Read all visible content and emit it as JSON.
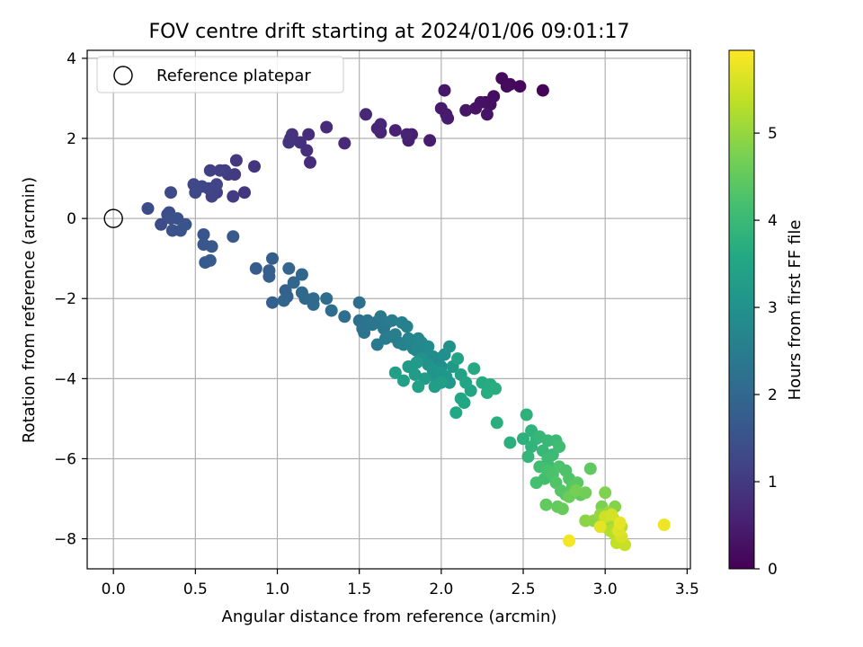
{
  "chart_data": {
    "type": "scatter",
    "title": "FOV centre drift starting at 2024/01/06 09:01:17",
    "xlabel": "Angular distance from reference (arcmin)",
    "ylabel": "Rotation from reference (arcmin)",
    "xlim": [
      -0.16,
      3.52
    ],
    "ylim": [
      -8.75,
      4.2
    ],
    "x_ticks": [
      0.0,
      0.5,
      1.0,
      1.5,
      2.0,
      2.5,
      3.0,
      3.5
    ],
    "x_tick_labels": [
      "0.0",
      "0.5",
      "1.0",
      "1.5",
      "2.0",
      "2.5",
      "3.0",
      "3.5"
    ],
    "y_ticks": [
      4,
      2,
      0,
      -2,
      -4,
      -6,
      -8
    ],
    "y_tick_labels": [
      "4",
      "2",
      "0",
      "−2",
      "−4",
      "−6",
      "−8"
    ],
    "grid": true,
    "legend": {
      "placement": "upper-left",
      "entries": [
        "Reference platepar"
      ]
    },
    "reference_point": {
      "x": 0.0,
      "y": 0.0
    },
    "colorbar": {
      "label": "Hours from first FF file",
      "range": [
        0,
        5.95
      ],
      "ticks": [
        0,
        1,
        2,
        3,
        4,
        5
      ],
      "tick_labels": [
        "0",
        "1",
        "2",
        "3",
        "4",
        "5"
      ],
      "colormap": "viridis"
    },
    "points": [
      [
        2.62,
        3.2,
        0.05
      ],
      [
        2.48,
        3.3,
        0.1
      ],
      [
        2.42,
        3.35,
        0.12
      ],
      [
        2.37,
        3.5,
        0.15
      ],
      [
        2.4,
        3.3,
        0.17
      ],
      [
        2.32,
        3.05,
        0.2
      ],
      [
        2.27,
        2.9,
        0.22
      ],
      [
        2.3,
        2.85,
        0.25
      ],
      [
        2.24,
        2.9,
        0.27
      ],
      [
        2.21,
        2.75,
        0.3
      ],
      [
        2.28,
        2.6,
        0.32
      ],
      [
        2.15,
        2.7,
        0.35
      ],
      [
        2.02,
        3.2,
        0.37
      ],
      [
        2.03,
        2.6,
        0.4
      ],
      [
        2.0,
        2.75,
        0.42
      ],
      [
        2.04,
        2.5,
        0.45
      ],
      [
        1.93,
        1.95,
        0.47
      ],
      [
        1.82,
        2.1,
        0.5
      ],
      [
        1.8,
        1.95,
        0.52
      ],
      [
        1.72,
        2.2,
        0.55
      ],
      [
        1.79,
        2.1,
        0.57
      ],
      [
        1.63,
        2.15,
        0.6
      ],
      [
        1.61,
        2.25,
        0.62
      ],
      [
        1.63,
        2.35,
        0.65
      ],
      [
        1.54,
        2.6,
        0.67
      ],
      [
        1.41,
        1.88,
        0.7
      ],
      [
        1.3,
        2.28,
        0.72
      ],
      [
        1.19,
        2.1,
        0.75
      ],
      [
        1.2,
        1.4,
        0.77
      ],
      [
        1.18,
        1.7,
        0.8
      ],
      [
        1.14,
        1.9,
        0.82
      ],
      [
        1.08,
        2.0,
        0.85
      ],
      [
        1.09,
        2.1,
        0.87
      ],
      [
        1.07,
        1.9,
        0.9
      ],
      [
        0.86,
        1.3,
        0.92
      ],
      [
        0.8,
        0.65,
        0.95
      ],
      [
        0.75,
        1.45,
        0.97
      ],
      [
        0.74,
        1.1,
        1.0
      ],
      [
        0.7,
        1.1,
        1.02
      ],
      [
        0.73,
        0.55,
        1.05
      ],
      [
        0.68,
        1.2,
        1.07
      ],
      [
        0.65,
        1.2,
        1.1
      ],
      [
        0.59,
        1.2,
        1.12
      ],
      [
        0.63,
        0.65,
        1.15
      ],
      [
        0.6,
        0.55,
        1.17
      ],
      [
        0.63,
        0.85,
        1.2
      ],
      [
        0.58,
        0.75,
        1.22
      ],
      [
        0.54,
        0.8,
        1.25
      ],
      [
        0.49,
        0.85,
        1.27
      ],
      [
        0.5,
        0.65,
        1.3
      ],
      [
        0.35,
        0.65,
        1.32
      ],
      [
        0.21,
        0.25,
        1.35
      ],
      [
        0.29,
        -0.15,
        1.37
      ],
      [
        0.33,
        0.1,
        1.4
      ],
      [
        0.34,
        0.15,
        1.42
      ],
      [
        0.35,
        0.0,
        1.45
      ],
      [
        0.39,
        0.0,
        1.47
      ],
      [
        0.36,
        -0.3,
        1.5
      ],
      [
        0.41,
        -0.3,
        1.52
      ],
      [
        0.44,
        -0.15,
        1.55
      ],
      [
        0.55,
        -0.4,
        1.57
      ],
      [
        0.55,
        -0.65,
        1.6
      ],
      [
        0.6,
        -0.7,
        1.62
      ],
      [
        0.73,
        -0.45,
        1.65
      ],
      [
        0.56,
        -1.1,
        1.67
      ],
      [
        0.59,
        -1.05,
        1.7
      ],
      [
        0.87,
        -1.25,
        1.72
      ],
      [
        0.95,
        -1.3,
        1.75
      ],
      [
        0.97,
        -1.0,
        1.77
      ],
      [
        0.95,
        -1.45,
        1.8
      ],
      [
        0.97,
        -2.1,
        1.82
      ],
      [
        1.05,
        -1.8,
        1.85
      ],
      [
        1.06,
        -1.95,
        1.87
      ],
      [
        1.04,
        -2.05,
        1.9
      ],
      [
        1.07,
        -1.25,
        1.92
      ],
      [
        1.1,
        -1.6,
        1.95
      ],
      [
        1.15,
        -1.4,
        1.97
      ],
      [
        1.15,
        -1.85,
        2.0
      ],
      [
        1.17,
        -2.0,
        2.02
      ],
      [
        1.22,
        -2.0,
        2.05
      ],
      [
        1.22,
        -2.15,
        2.07
      ],
      [
        1.3,
        -2.0,
        2.1
      ],
      [
        1.33,
        -2.3,
        2.12
      ],
      [
        1.41,
        -2.45,
        2.15
      ],
      [
        1.5,
        -2.1,
        2.17
      ],
      [
        1.5,
        -2.55,
        2.2
      ],
      [
        1.52,
        -2.75,
        2.22
      ],
      [
        1.55,
        -2.55,
        2.25
      ],
      [
        1.53,
        -2.85,
        2.27
      ],
      [
        1.58,
        -2.65,
        2.3
      ],
      [
        1.6,
        -2.6,
        2.32
      ],
      [
        1.63,
        -2.45,
        2.35
      ],
      [
        1.65,
        -2.75,
        2.37
      ],
      [
        1.61,
        -3.15,
        2.4
      ],
      [
        1.67,
        -2.6,
        2.42
      ],
      [
        1.66,
        -3.0,
        2.45
      ],
      [
        1.7,
        -2.55,
        2.47
      ],
      [
        1.72,
        -2.9,
        2.5
      ],
      [
        1.74,
        -3.1,
        2.52
      ],
      [
        1.7,
        -2.95,
        2.55
      ],
      [
        1.76,
        -2.6,
        2.57
      ],
      [
        1.79,
        -2.7,
        2.6
      ],
      [
        1.8,
        -3.0,
        2.62
      ],
      [
        1.77,
        -3.15,
        2.65
      ],
      [
        1.83,
        -3.25,
        2.67
      ],
      [
        1.82,
        -3.05,
        2.7
      ],
      [
        1.86,
        -3.0,
        2.72
      ],
      [
        1.85,
        -3.3,
        2.75
      ],
      [
        1.88,
        -3.1,
        2.77
      ],
      [
        1.9,
        -3.4,
        2.8
      ],
      [
        1.92,
        -3.2,
        2.82
      ],
      [
        1.95,
        -3.45,
        2.85
      ],
      [
        1.96,
        -3.6,
        2.87
      ],
      [
        1.98,
        -3.5,
        2.9
      ],
      [
        2.0,
        -3.7,
        2.92
      ],
      [
        2.02,
        -3.4,
        2.95
      ],
      [
        2.05,
        -3.2,
        2.97
      ],
      [
        1.88,
        -3.5,
        3.0
      ],
      [
        1.92,
        -3.65,
        3.02
      ],
      [
        1.95,
        -3.8,
        3.05
      ],
      [
        1.97,
        -4.0,
        3.07
      ],
      [
        2.0,
        -3.85,
        3.1
      ],
      [
        2.03,
        -3.95,
        3.12
      ],
      [
        2.05,
        -4.1,
        3.15
      ],
      [
        2.07,
        -3.7,
        3.17
      ],
      [
        1.85,
        -3.6,
        3.2
      ],
      [
        1.8,
        -3.7,
        3.22
      ],
      [
        1.84,
        -3.9,
        3.25
      ],
      [
        1.9,
        -4.0,
        3.27
      ],
      [
        1.96,
        -4.2,
        3.3
      ],
      [
        2.0,
        -4.1,
        3.32
      ],
      [
        1.72,
        -3.85,
        3.35
      ],
      [
        1.77,
        -4.05,
        3.37
      ],
      [
        1.86,
        -4.2,
        3.4
      ],
      [
        2.1,
        -3.5,
        3.42
      ],
      [
        2.12,
        -3.9,
        3.45
      ],
      [
        2.15,
        -4.1,
        3.47
      ],
      [
        2.18,
        -4.3,
        3.5
      ],
      [
        2.12,
        -4.5,
        3.52
      ],
      [
        2.14,
        -4.6,
        3.55
      ],
      [
        2.09,
        -4.85,
        3.57
      ],
      [
        2.2,
        -3.75,
        3.6
      ],
      [
        2.25,
        -4.1,
        3.62
      ],
      [
        2.3,
        -4.15,
        3.65
      ],
      [
        2.28,
        -4.35,
        3.67
      ],
      [
        2.33,
        -4.25,
        3.7
      ],
      [
        2.34,
        -5.1,
        3.72
      ],
      [
        2.42,
        -5.6,
        3.75
      ],
      [
        2.5,
        -5.5,
        3.77
      ],
      [
        2.52,
        -4.9,
        3.8
      ],
      [
        2.55,
        -5.3,
        3.82
      ],
      [
        2.55,
        -5.7,
        3.85
      ],
      [
        2.58,
        -5.5,
        3.87
      ],
      [
        2.53,
        -5.95,
        3.9
      ],
      [
        2.6,
        -5.45,
        3.92
      ],
      [
        2.62,
        -5.8,
        3.95
      ],
      [
        2.65,
        -5.55,
        3.97
      ],
      [
        2.68,
        -5.9,
        4.0
      ],
      [
        2.7,
        -5.55,
        4.02
      ],
      [
        2.65,
        -6.0,
        4.05
      ],
      [
        2.66,
        -6.2,
        4.07
      ],
      [
        2.72,
        -5.7,
        4.1
      ],
      [
        2.6,
        -6.2,
        4.12
      ],
      [
        2.63,
        -6.5,
        4.15
      ],
      [
        2.58,
        -6.6,
        4.17
      ],
      [
        2.65,
        -6.3,
        4.2
      ],
      [
        2.68,
        -6.4,
        4.22
      ],
      [
        2.72,
        -6.2,
        4.25
      ],
      [
        2.76,
        -6.3,
        4.27
      ],
      [
        2.78,
        -6.5,
        4.3
      ],
      [
        2.7,
        -6.6,
        4.32
      ],
      [
        2.73,
        -6.8,
        4.35
      ],
      [
        2.76,
        -6.9,
        4.37
      ],
      [
        2.8,
        -6.7,
        4.4
      ],
      [
        2.83,
        -6.6,
        4.42
      ],
      [
        2.85,
        -6.9,
        4.45
      ],
      [
        2.91,
        -6.25,
        4.47
      ],
      [
        2.64,
        -7.15,
        4.5
      ],
      [
        2.71,
        -7.2,
        4.52
      ],
      [
        2.74,
        -7.25,
        4.55
      ],
      [
        2.78,
        -6.95,
        4.6
      ],
      [
        2.88,
        -6.85,
        4.65
      ],
      [
        2.82,
        -6.8,
        4.7
      ],
      [
        2.98,
        -7.2,
        4.75
      ],
      [
        3.0,
        -6.85,
        4.8
      ],
      [
        3.06,
        -7.2,
        4.85
      ],
      [
        2.88,
        -7.55,
        4.9
      ],
      [
        2.93,
        -7.55,
        4.95
      ],
      [
        2.97,
        -7.4,
        5.0
      ],
      [
        3.02,
        -7.35,
        5.05
      ],
      [
        3.0,
        -7.7,
        5.1
      ],
      [
        3.05,
        -7.5,
        5.15
      ],
      [
        3.08,
        -7.6,
        5.2
      ],
      [
        3.03,
        -7.8,
        5.25
      ],
      [
        3.06,
        -7.9,
        5.3
      ],
      [
        3.1,
        -7.7,
        5.35
      ],
      [
        3.07,
        -8.1,
        5.4
      ],
      [
        3.12,
        -8.15,
        5.45
      ],
      [
        3.0,
        -7.45,
        5.5
      ],
      [
        3.04,
        -7.4,
        5.55
      ],
      [
        3.1,
        -7.95,
        5.6
      ],
      [
        3.08,
        -7.8,
        5.65
      ],
      [
        2.97,
        -7.7,
        5.7
      ],
      [
        3.09,
        -7.6,
        5.75
      ],
      [
        3.36,
        -7.65,
        5.8
      ],
      [
        2.78,
        -8.05,
        5.85
      ]
    ]
  }
}
